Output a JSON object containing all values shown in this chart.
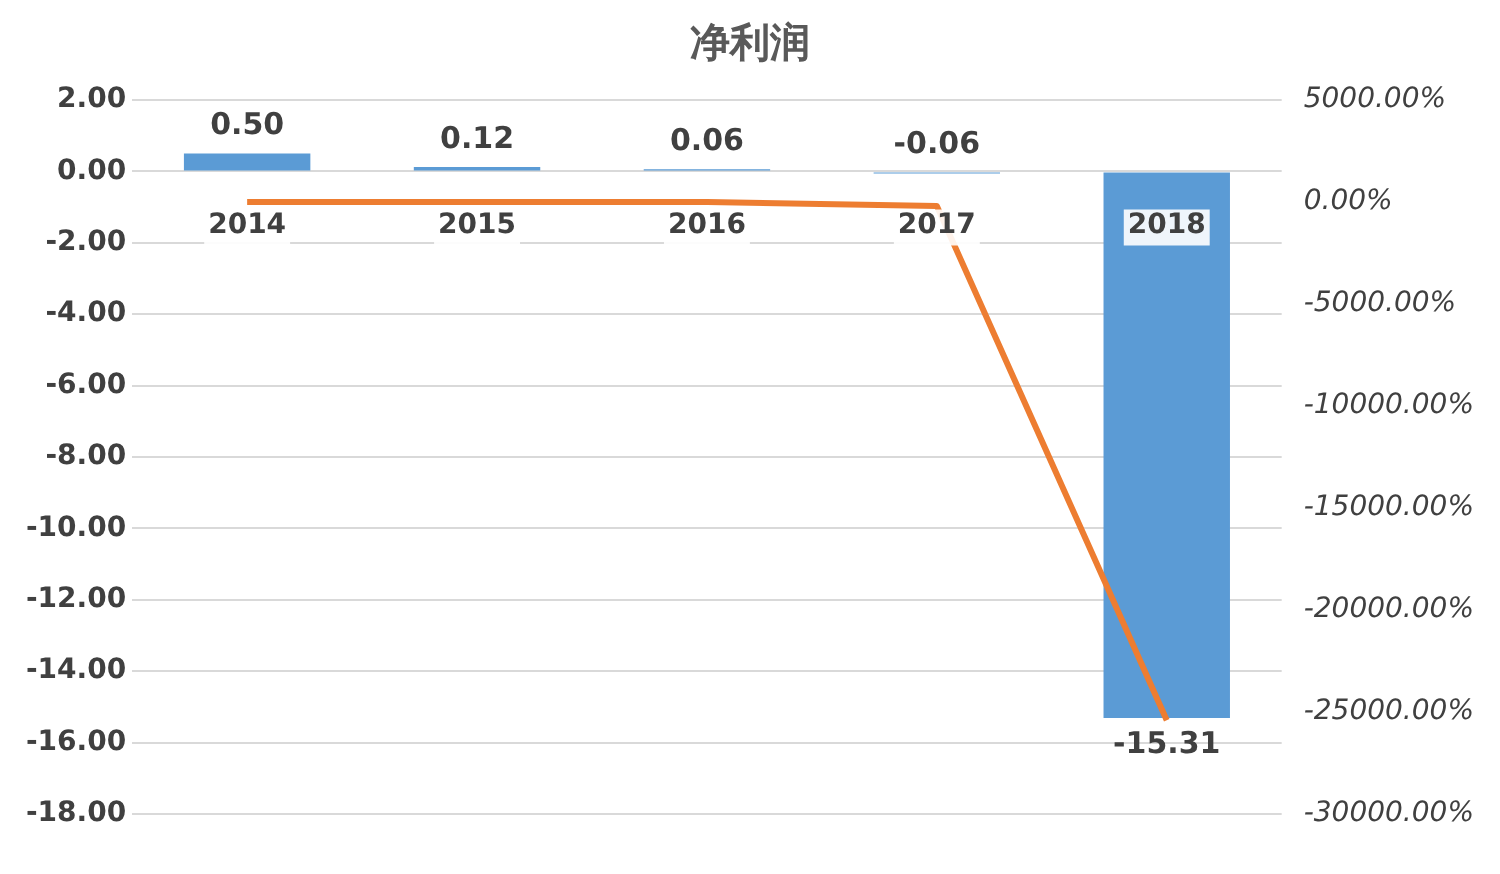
{
  "chart_data": {
    "type": "bar",
    "title": "净利润",
    "categories": [
      "2014",
      "2015",
      "2016",
      "2017",
      "2018"
    ],
    "series": [
      {
        "color": "#5b9bd5",
        "values": [
          0.5,
          0.12,
          0.06,
          -0.06,
          -15.31
        ],
        "value_labels": [
          "0.50",
          "0.12",
          "0.06",
          "-0.06",
          "-15.31"
        ]
      },
      {
        "type": "line",
        "axis": "y2",
        "color": "#ed7d31",
        "values": [
          0,
          0,
          0,
          -200,
          -25400
        ]
      }
    ],
    "ylim": [
      -18,
      2
    ],
    "yticks": [
      {
        "value": 2,
        "label": "2.00"
      },
      {
        "value": 0,
        "label": "0.00"
      },
      {
        "value": -2,
        "label": "-2.00"
      },
      {
        "value": -4,
        "label": "-4.00"
      },
      {
        "value": -6,
        "label": "-6.00"
      },
      {
        "value": -8,
        "label": "-8.00"
      },
      {
        "value": -10,
        "label": "-10.00"
      },
      {
        "value": -12,
        "label": "-12.00"
      },
      {
        "value": -14,
        "label": "-14.00"
      },
      {
        "value": -16,
        "label": "-16.00"
      },
      {
        "value": -18,
        "label": "-18.00"
      }
    ],
    "y2lim": [
      -30000,
      5000
    ],
    "y2ticks": [
      {
        "value": 5000,
        "label": "5000.00%"
      },
      {
        "value": 0,
        "label": "0.00%"
      },
      {
        "value": -5000,
        "label": "-5000.00%"
      },
      {
        "value": -10000,
        "label": "-10000.00%"
      },
      {
        "value": -15000,
        "label": "-15000.00%"
      },
      {
        "value": -20000,
        "label": "-20000.00%"
      },
      {
        "value": -25000,
        "label": "-25000.00%"
      },
      {
        "value": -30000,
        "label": "-30000.00%"
      }
    ],
    "grid": "y",
    "marker": "none"
  }
}
